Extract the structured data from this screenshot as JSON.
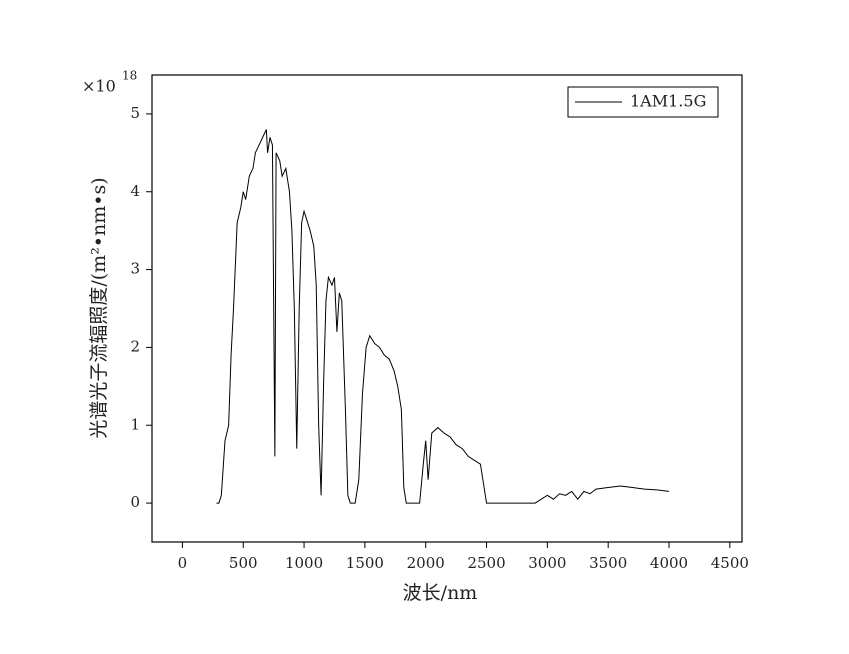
{
  "chart_data": {
    "type": "line",
    "xlabel": "波长/nm",
    "ylabel": "光谱光子流辐照度/(m²•nm•s)",
    "y_multiplier": "×10",
    "y_exponent": "18",
    "xlim": [
      -250,
      4600
    ],
    "ylim": [
      -0.5,
      5.5
    ],
    "xticks": [
      0,
      500,
      1000,
      1500,
      2000,
      2500,
      3000,
      3500,
      4000,
      4500
    ],
    "yticks": [
      0,
      1,
      2,
      3,
      4,
      5
    ],
    "legend": "upper right",
    "x": [
      280,
      300,
      320,
      350,
      380,
      400,
      420,
      450,
      480,
      500,
      520,
      550,
      580,
      600,
      630,
      660,
      690,
      700,
      720,
      740,
      760,
      770,
      800,
      820,
      850,
      880,
      900,
      920,
      940,
      960,
      980,
      1000,
      1050,
      1080,
      1100,
      1120,
      1140,
      1160,
      1180,
      1200,
      1230,
      1250,
      1270,
      1290,
      1310,
      1340,
      1360,
      1380,
      1420,
      1450,
      1480,
      1510,
      1540,
      1580,
      1620,
      1660,
      1700,
      1740,
      1770,
      1800,
      1820,
      1840,
      1950,
      1980,
      2000,
      2020,
      2050,
      2100,
      2150,
      2200,
      2250,
      2300,
      2350,
      2400,
      2450,
      2480,
      2500,
      2900,
      2950,
      3000,
      3050,
      3100,
      3150,
      3200,
      3250,
      3300,
      3350,
      3400,
      3500,
      3600,
      3700,
      3800,
      3900,
      4000
    ],
    "series": [
      {
        "name": "1AM1.5G",
        "color": "#000000",
        "values": [
          0,
          0,
          0.1,
          0.8,
          1.0,
          1.9,
          2.5,
          3.6,
          3.8,
          4.0,
          3.9,
          4.2,
          4.3,
          4.5,
          4.6,
          4.7,
          4.8,
          4.5,
          4.7,
          4.6,
          0.6,
          4.5,
          4.4,
          4.2,
          4.3,
          4.0,
          3.5,
          2.5,
          0.7,
          2.5,
          3.6,
          3.75,
          3.5,
          3.3,
          2.8,
          1.0,
          0.1,
          1.5,
          2.6,
          2.9,
          2.8,
          2.9,
          2.2,
          2.7,
          2.6,
          1.2,
          0.1,
          0,
          0,
          0.3,
          1.4,
          2.0,
          2.15,
          2.05,
          2.0,
          1.9,
          1.85,
          1.7,
          1.5,
          1.2,
          0.2,
          0,
          0,
          0.5,
          0.8,
          0.3,
          0.9,
          0.97,
          0.9,
          0.85,
          0.75,
          0.7,
          0.6,
          0.55,
          0.5,
          0.2,
          0,
          0,
          0.05,
          0.1,
          0.05,
          0.12,
          0.1,
          0.15,
          0.05,
          0.15,
          0.12,
          0.18,
          0.2,
          0.22,
          0.2,
          0.18,
          0.17,
          0.15
        ]
      }
    ]
  }
}
